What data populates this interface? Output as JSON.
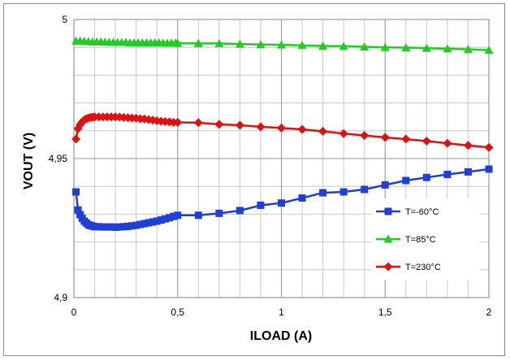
{
  "chart_data": {
    "type": "line",
    "title": "",
    "xlabel": "ILOAD (A)",
    "ylabel": "VOUT (V)",
    "xlim": [
      0,
      2
    ],
    "ylim": [
      4.9,
      5.0
    ],
    "x_ticks": [
      {
        "value": 0,
        "label": "0"
      },
      {
        "value": 0.5,
        "label": "0,5"
      },
      {
        "value": 1,
        "label": "1"
      },
      {
        "value": 1.5,
        "label": "1,5"
      },
      {
        "value": 2,
        "label": "2"
      }
    ],
    "y_ticks": [
      {
        "value": 4.9,
        "label": "4,9"
      },
      {
        "value": 4.95,
        "label": "4,95"
      },
      {
        "value": 5.0,
        "label": "5"
      }
    ],
    "grid": true,
    "legend_position": "bottom-right",
    "series": [
      {
        "name": "T=-60°C",
        "color": "#1f3fd6",
        "marker": "square",
        "x": [
          0.01,
          0.02,
          0.03,
          0.04,
          0.05,
          0.06,
          0.07,
          0.08,
          0.09,
          0.1,
          0.12,
          0.14,
          0.16,
          0.18,
          0.2,
          0.22,
          0.24,
          0.26,
          0.28,
          0.3,
          0.32,
          0.34,
          0.36,
          0.38,
          0.4,
          0.42,
          0.44,
          0.46,
          0.48,
          0.5,
          0.6,
          0.7,
          0.8,
          0.9,
          1.0,
          1.1,
          1.2,
          1.3,
          1.4,
          1.5,
          1.6,
          1.7,
          1.8,
          1.9,
          2.0
        ],
        "y": [
          4.938,
          4.9315,
          4.9298,
          4.9285,
          4.9275,
          4.9268,
          4.9262,
          4.9259,
          4.9257,
          4.9255,
          4.9255,
          4.9254,
          4.9254,
          4.9254,
          4.9253,
          4.9254,
          4.9255,
          4.9256,
          4.9258,
          4.926,
          4.9263,
          4.9266,
          4.9269,
          4.9272,
          4.9275,
          4.9279,
          4.9283,
          4.9287,
          4.9292,
          4.9296,
          4.9296,
          4.9303,
          4.9313,
          4.9332,
          4.934,
          4.9358,
          4.9377,
          4.938,
          4.9389,
          4.9405,
          4.9421,
          4.9432,
          4.9443,
          4.9452,
          4.9462
        ]
      },
      {
        "name": "T=85°C",
        "color": "#22cc22",
        "marker": "triangle",
        "x": [
          0.01,
          0.03,
          0.05,
          0.07,
          0.09,
          0.11,
          0.13,
          0.15,
          0.17,
          0.19,
          0.21,
          0.23,
          0.25,
          0.27,
          0.29,
          0.31,
          0.33,
          0.35,
          0.37,
          0.39,
          0.41,
          0.43,
          0.45,
          0.47,
          0.49,
          0.5,
          0.6,
          0.7,
          0.8,
          0.9,
          1.0,
          1.1,
          1.2,
          1.3,
          1.4,
          1.5,
          1.6,
          1.7,
          1.8,
          1.9,
          2.0
        ],
        "y": [
          4.9923,
          4.9923,
          4.9922,
          4.9921,
          4.992,
          4.992,
          4.992,
          4.9919,
          4.9919,
          4.9918,
          4.9918,
          4.9918,
          4.9918,
          4.9917,
          4.9917,
          4.9917,
          4.9917,
          4.9917,
          4.9917,
          4.9917,
          4.9917,
          4.9916,
          4.9916,
          4.9916,
          4.9916,
          4.9915,
          4.9914,
          4.9914,
          4.9912,
          4.991,
          4.9909,
          4.9907,
          4.9905,
          4.9904,
          4.9902,
          4.99,
          4.9899,
          4.9897,
          4.9895,
          4.9893,
          4.989
        ]
      },
      {
        "name": "T=230°C",
        "color": "#e01010",
        "marker": "diamond",
        "x": [
          0.01,
          0.02,
          0.03,
          0.04,
          0.05,
          0.06,
          0.07,
          0.08,
          0.09,
          0.1,
          0.12,
          0.14,
          0.16,
          0.18,
          0.2,
          0.22,
          0.24,
          0.26,
          0.28,
          0.3,
          0.32,
          0.34,
          0.36,
          0.38,
          0.4,
          0.42,
          0.44,
          0.46,
          0.48,
          0.5,
          0.6,
          0.7,
          0.8,
          0.9,
          1.0,
          1.1,
          1.2,
          1.3,
          1.4,
          1.5,
          1.6,
          1.7,
          1.8,
          1.9,
          2.0
        ],
        "y": [
          4.957,
          4.9608,
          4.9622,
          4.9632,
          4.9639,
          4.9643,
          4.9646,
          4.9648,
          4.9649,
          4.965,
          4.965,
          4.965,
          4.965,
          4.965,
          4.965,
          4.9649,
          4.9648,
          4.9647,
          4.9646,
          4.9645,
          4.9643,
          4.9642,
          4.964,
          4.9638,
          4.9636,
          4.9634,
          4.9633,
          4.9632,
          4.963,
          4.963,
          4.9629,
          4.9623,
          4.962,
          4.9614,
          4.961,
          4.9605,
          4.9598,
          4.959,
          4.9583,
          4.9576,
          4.957,
          4.9563,
          4.9555,
          4.9547,
          4.954
        ]
      }
    ]
  }
}
